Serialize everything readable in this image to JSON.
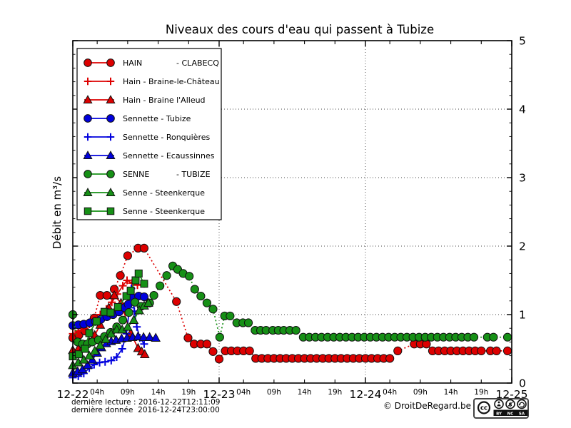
{
  "footer": {
    "last_read_label": "dernière lecture : 2016-12-22T12:11:09",
    "last_data_label": "dernière donnée  2016-12-24T23:00:00",
    "copyright": "© DroitDeRegard.be",
    "license": {
      "cc_label": "cc",
      "strip_labels": [
        "BY",
        "NC",
        "SA"
      ]
    }
  },
  "chart_data": {
    "type": "line",
    "title": "Niveaux des cours d'eau qui passent à Tubize",
    "xlabel": "",
    "ylabel": "Débit en m³/s",
    "x_unit": "hours since 2016-12-22 00:00",
    "xlim": [
      0,
      72
    ],
    "ylim": [
      0,
      5
    ],
    "yticks": [
      0,
      1,
      2,
      3,
      4,
      5
    ],
    "grid": {
      "h_values": [
        1,
        2,
        3,
        4
      ],
      "v_hours": [
        24,
        48
      ]
    },
    "legend_position": "upper left",
    "day_ticks": [
      {
        "h": 0,
        "label": "12-22"
      },
      {
        "h": 24,
        "label": "12-23"
      },
      {
        "h": 48,
        "label": "12-24"
      },
      {
        "h": 72,
        "label": "12-25"
      }
    ],
    "hour_ticks": [
      {
        "h": 4,
        "label": "04h"
      },
      {
        "h": 9,
        "label": "09h"
      },
      {
        "h": 14,
        "label": "14h"
      },
      {
        "h": 19,
        "label": "19h"
      },
      {
        "h": 28,
        "label": "04h"
      },
      {
        "h": 33,
        "label": "09h"
      },
      {
        "h": 38,
        "label": "14h"
      },
      {
        "h": 43,
        "label": "19h"
      },
      {
        "h": 52,
        "label": "04h"
      },
      {
        "h": 57,
        "label": "09h"
      },
      {
        "h": 62,
        "label": "14h"
      },
      {
        "h": 67,
        "label": "19h"
      }
    ],
    "series": [
      {
        "name": "HAIN - CLABECQ",
        "legend_label": "HAIN",
        "legend_label2": "- CLABECQ",
        "color": "#dd0000",
        "marker": "circle",
        "line": "dotted",
        "points": [
          [
            0,
            0.66
          ],
          [
            1,
            0.7
          ],
          [
            2,
            0.76
          ],
          [
            3.5,
            0.95
          ],
          [
            4.5,
            1.28
          ],
          [
            5.6,
            1.28
          ],
          [
            6.8,
            1.37
          ],
          [
            7.8,
            1.57
          ],
          [
            9,
            1.86
          ],
          [
            10.7,
            1.97
          ],
          [
            11.7,
            1.97
          ],
          [
            17,
            1.19
          ],
          [
            18.9,
            0.66
          ],
          [
            19.9,
            0.57
          ],
          [
            21,
            0.57
          ],
          [
            22,
            0.57
          ],
          [
            23,
            0.46
          ],
          [
            24,
            0.35
          ],
          [
            25,
            0.47
          ],
          [
            26,
            0.47
          ],
          [
            27,
            0.47
          ],
          [
            28,
            0.47
          ],
          [
            29,
            0.47
          ],
          [
            30,
            0.36
          ],
          [
            31,
            0.36
          ],
          [
            32,
            0.36
          ],
          [
            33,
            0.36
          ],
          [
            34,
            0.36
          ],
          [
            35,
            0.36
          ],
          [
            36,
            0.36
          ],
          [
            37,
            0.36
          ],
          [
            38,
            0.36
          ],
          [
            39,
            0.36
          ],
          [
            40,
            0.36
          ],
          [
            41,
            0.36
          ],
          [
            42,
            0.36
          ],
          [
            43,
            0.36
          ],
          [
            44,
            0.36
          ],
          [
            45,
            0.36
          ],
          [
            46,
            0.36
          ],
          [
            47,
            0.36
          ],
          [
            48,
            0.36
          ],
          [
            49,
            0.36
          ],
          [
            50,
            0.36
          ],
          [
            51,
            0.36
          ],
          [
            52,
            0.36
          ],
          [
            53.3,
            0.47
          ],
          [
            56,
            0.57
          ],
          [
            57,
            0.57
          ],
          [
            58,
            0.57
          ],
          [
            59,
            0.47
          ],
          [
            60,
            0.47
          ],
          [
            61,
            0.47
          ],
          [
            62,
            0.47
          ],
          [
            63,
            0.47
          ],
          [
            64,
            0.47
          ],
          [
            65,
            0.47
          ],
          [
            66,
            0.47
          ],
          [
            67,
            0.47
          ],
          [
            68.5,
            0.47
          ],
          [
            69.5,
            0.47
          ],
          [
            71.3,
            0.47
          ]
        ]
      },
      {
        "name": "Hain - Braine-le-Château",
        "legend_label": "Hain - Braine-le-Château",
        "color": "#dd0000",
        "marker": "plus",
        "line": "solid",
        "points": [
          [
            0,
            0.72
          ],
          [
            0.9,
            0.76
          ],
          [
            1.8,
            0.8
          ],
          [
            2.7,
            0.86
          ],
          [
            3.6,
            0.93
          ],
          [
            4.5,
            1.0
          ],
          [
            5.5,
            1.08
          ],
          [
            6.4,
            1.18
          ],
          [
            7.3,
            1.3
          ],
          [
            8.2,
            1.42
          ],
          [
            8.9,
            1.5
          ],
          [
            9.7,
            1.46
          ],
          [
            10.6,
            1.43
          ],
          [
            11.7,
            1.45
          ]
        ]
      },
      {
        "name": "Hain - Braine l'Alleud",
        "legend_label": "Hain - Braine l'Alleud",
        "color": "#dd0000",
        "marker": "triangle",
        "line": "solid",
        "points": [
          [
            0,
            0.48
          ],
          [
            0.9,
            0.5
          ],
          [
            1.8,
            0.54
          ],
          [
            2.7,
            0.6
          ],
          [
            3.6,
            0.7
          ],
          [
            4.5,
            0.85
          ],
          [
            5.4,
            1.02
          ],
          [
            5.9,
            1.1
          ],
          [
            6.8,
            1.28
          ],
          [
            7.9,
            1.17
          ],
          [
            9.5,
            0.73
          ],
          [
            10.7,
            0.51
          ],
          [
            11.3,
            0.46
          ],
          [
            11.8,
            0.42
          ]
        ]
      },
      {
        "name": "Sennette - Tubize",
        "legend_label": "Sennette - Tubize",
        "color": "#0000dd",
        "marker": "circle",
        "line": "solid",
        "points": [
          [
            0,
            0.84
          ],
          [
            0.9,
            0.85
          ],
          [
            1.8,
            0.86
          ],
          [
            2.8,
            0.88
          ],
          [
            3.7,
            0.9
          ],
          [
            4.6,
            0.93
          ],
          [
            5.6,
            0.97
          ],
          [
            6.6,
            1.0
          ],
          [
            7.6,
            1.04
          ],
          [
            8.5,
            1.1
          ],
          [
            9.1,
            1.15
          ],
          [
            9.9,
            1.24
          ],
          [
            10.8,
            1.27
          ],
          [
            11.7,
            1.26
          ]
        ]
      },
      {
        "name": "Sennette - Ronquières",
        "legend_label": "Sennette - Ronquières",
        "color": "#0000dd",
        "marker": "plus",
        "line": "solid",
        "points": [
          [
            0,
            0.08
          ],
          [
            0.9,
            0.1
          ],
          [
            1.8,
            0.14
          ],
          [
            2.7,
            0.22
          ],
          [
            3.5,
            0.27
          ],
          [
            4.4,
            0.3
          ],
          [
            5.3,
            0.31
          ],
          [
            6.3,
            0.33
          ],
          [
            7.2,
            0.38
          ],
          [
            8.1,
            0.5
          ],
          [
            8.8,
            0.72
          ],
          [
            9.3,
            1.1
          ],
          [
            9.6,
            1.38
          ],
          [
            10.1,
            1.05
          ],
          [
            10.5,
            0.82
          ],
          [
            11,
            0.66
          ],
          [
            11.7,
            0.57
          ]
        ]
      },
      {
        "name": "Sennette - Ecaussinnes",
        "legend_label": "Sennette - Ecaussinnes",
        "color": "#0000dd",
        "marker": "triangle",
        "line": "solid",
        "points": [
          [
            0,
            0.15
          ],
          [
            0.8,
            0.17
          ],
          [
            1.6,
            0.2
          ],
          [
            2.4,
            0.26
          ],
          [
            3.2,
            0.34
          ],
          [
            4,
            0.44
          ],
          [
            4.7,
            0.52
          ],
          [
            5.5,
            0.58
          ],
          [
            6.3,
            0.61
          ],
          [
            7.1,
            0.63
          ],
          [
            8,
            0.65
          ],
          [
            8.9,
            0.66
          ],
          [
            9.8,
            0.67
          ],
          [
            10.7,
            0.68
          ],
          [
            11.6,
            0.67
          ],
          [
            12.6,
            0.67
          ],
          [
            13.6,
            0.66
          ]
        ]
      },
      {
        "name": "SENNE - TUBIZE",
        "legend_label": "SENNE",
        "legend_label2": "- TUBIZE",
        "color": "#169016",
        "marker": "circle",
        "line": "dotted",
        "points": [
          [
            0,
            1.0
          ],
          [
            0.8,
            0.6
          ],
          [
            1.6,
            0.57
          ],
          [
            2.4,
            0.57
          ],
          [
            3.2,
            0.6
          ],
          [
            4.2,
            0.63
          ],
          [
            5.2,
            0.68
          ],
          [
            6.2,
            0.74
          ],
          [
            7.2,
            0.82
          ],
          [
            8.2,
            0.92
          ],
          [
            9.2,
            1.03
          ],
          [
            10.2,
            1.18
          ],
          [
            11.2,
            1.12
          ],
          [
            12.6,
            1.17
          ],
          [
            13.3,
            1.28
          ],
          [
            14.3,
            1.42
          ],
          [
            15.4,
            1.57
          ],
          [
            16.4,
            1.71
          ],
          [
            17.2,
            1.66
          ],
          [
            18.1,
            1.6
          ],
          [
            19.1,
            1.56
          ],
          [
            20,
            1.37
          ],
          [
            21,
            1.27
          ],
          [
            22,
            1.17
          ],
          [
            23,
            1.08
          ],
          [
            24.1,
            0.67
          ],
          [
            24.9,
            0.98
          ],
          [
            25.8,
            0.98
          ],
          [
            26.9,
            0.88
          ],
          [
            27.9,
            0.88
          ],
          [
            28.8,
            0.88
          ],
          [
            29.9,
            0.77
          ],
          [
            30.8,
            0.77
          ],
          [
            31.7,
            0.77
          ],
          [
            32.8,
            0.77
          ],
          [
            33.7,
            0.77
          ],
          [
            34.6,
            0.77
          ],
          [
            35.6,
            0.77
          ],
          [
            36.6,
            0.77
          ],
          [
            37.8,
            0.67
          ],
          [
            38.8,
            0.67
          ],
          [
            39.8,
            0.67
          ],
          [
            40.8,
            0.67
          ],
          [
            41.8,
            0.67
          ],
          [
            42.8,
            0.67
          ],
          [
            43.8,
            0.67
          ],
          [
            44.8,
            0.67
          ],
          [
            45.8,
            0.67
          ],
          [
            46.8,
            0.67
          ],
          [
            47.8,
            0.67
          ],
          [
            48.8,
            0.67
          ],
          [
            49.8,
            0.67
          ],
          [
            50.8,
            0.67
          ],
          [
            51.8,
            0.67
          ],
          [
            52.8,
            0.67
          ],
          [
            53.8,
            0.67
          ],
          [
            54.8,
            0.67
          ],
          [
            55.8,
            0.67
          ],
          [
            56.8,
            0.67
          ],
          [
            57.8,
            0.67
          ],
          [
            58.8,
            0.67
          ],
          [
            59.8,
            0.67
          ],
          [
            60.8,
            0.67
          ],
          [
            61.8,
            0.67
          ],
          [
            62.8,
            0.67
          ],
          [
            63.8,
            0.67
          ],
          [
            64.8,
            0.67
          ],
          [
            65.8,
            0.67
          ],
          [
            68,
            0.67
          ],
          [
            69,
            0.67
          ],
          [
            71.3,
            0.67
          ]
        ]
      },
      {
        "name": "Senne - Steenkerque",
        "legend_label": "Senne - Steenkerque",
        "color": "#169016",
        "marker": "triangle",
        "line": "solid",
        "points": [
          [
            0,
            0.26
          ],
          [
            0.9,
            0.3
          ],
          [
            1.8,
            0.34
          ],
          [
            2.7,
            0.4
          ],
          [
            3.6,
            0.47
          ],
          [
            4.5,
            0.55
          ],
          [
            5.4,
            0.64
          ],
          [
            6.3,
            0.72
          ],
          [
            7.2,
            0.78
          ],
          [
            8.1,
            0.78
          ],
          [
            9,
            0.82
          ],
          [
            10,
            0.92
          ],
          [
            10.9,
            1.06
          ],
          [
            11.7,
            1.13
          ],
          [
            12.4,
            1.17
          ]
        ]
      },
      {
        "name": "Senne - Steenkerque",
        "legend_label": "Senne - Steenkerque",
        "color": "#169016",
        "marker": "square",
        "line": "solid",
        "points": [
          [
            0,
            0.39
          ],
          [
            1,
            0.42
          ],
          [
            2,
            0.5
          ],
          [
            2.7,
            0.73
          ],
          [
            3.9,
            0.9
          ],
          [
            5.2,
            1.04
          ],
          [
            6.2,
            1.03
          ],
          [
            7.4,
            1.11
          ],
          [
            8.8,
            1.27
          ],
          [
            9.5,
            1.35
          ],
          [
            10.3,
            1.5
          ],
          [
            10.8,
            1.6
          ],
          [
            11.7,
            1.45
          ]
        ]
      }
    ]
  }
}
